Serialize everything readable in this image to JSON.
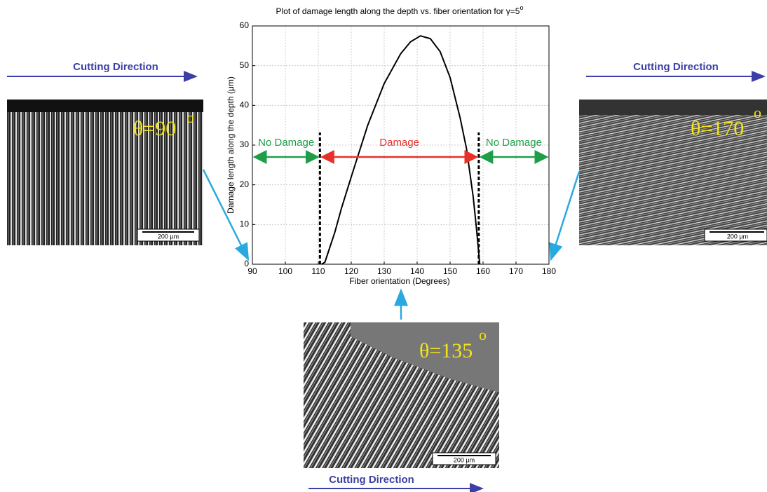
{
  "chart_data": {
    "type": "line",
    "title": "Plot of damage length along the depth vs. fiber orientation for γ=5",
    "title_sup": "o",
    "x_label": "Fiber orientation (Degrees)",
    "y_label": "Damage length along the depth (μm)",
    "x": [
      111,
      112,
      113,
      115,
      117,
      120,
      125,
      130,
      135,
      138,
      141,
      144,
      147,
      150,
      153,
      155,
      157,
      158,
      159
    ],
    "values": [
      0,
      0.5,
      3,
      8,
      14,
      22,
      35,
      45.5,
      53,
      56,
      57.5,
      56.8,
      53.5,
      47,
      37,
      29,
      17,
      9,
      0
    ],
    "color": "#000000",
    "xlim": [
      90,
      180
    ],
    "xticks": [
      90,
      100,
      110,
      120,
      130,
      140,
      150,
      160,
      170,
      180
    ],
    "ylim": [
      0,
      60
    ],
    "yticks": [
      0,
      10,
      20,
      30,
      40,
      50,
      60
    ],
    "grid": true,
    "dashed_lines": [
      110.5,
      158.7
    ],
    "regions": [
      {
        "label": "No Damage",
        "color": "#1f9e4a",
        "from": 90,
        "to": 110.5
      },
      {
        "label": "Damage",
        "color": "#e8302a",
        "from": 110.5,
        "to": 158.7
      },
      {
        "label": "No Damage",
        "color": "#1f9e4a",
        "from": 158.7,
        "to": 180
      }
    ]
  },
  "micrographs": [
    {
      "label": "θ=90",
      "sup": "o",
      "scale": "200 µm"
    },
    {
      "label": "θ=170",
      "sup": "o",
      "scale": "200 µm"
    },
    {
      "label": "θ=135",
      "sup": "o",
      "scale": "200 µm"
    }
  ],
  "cutting_direction": [
    "Cutting Direction",
    "Cutting Direction",
    "Cutting Direction"
  ]
}
